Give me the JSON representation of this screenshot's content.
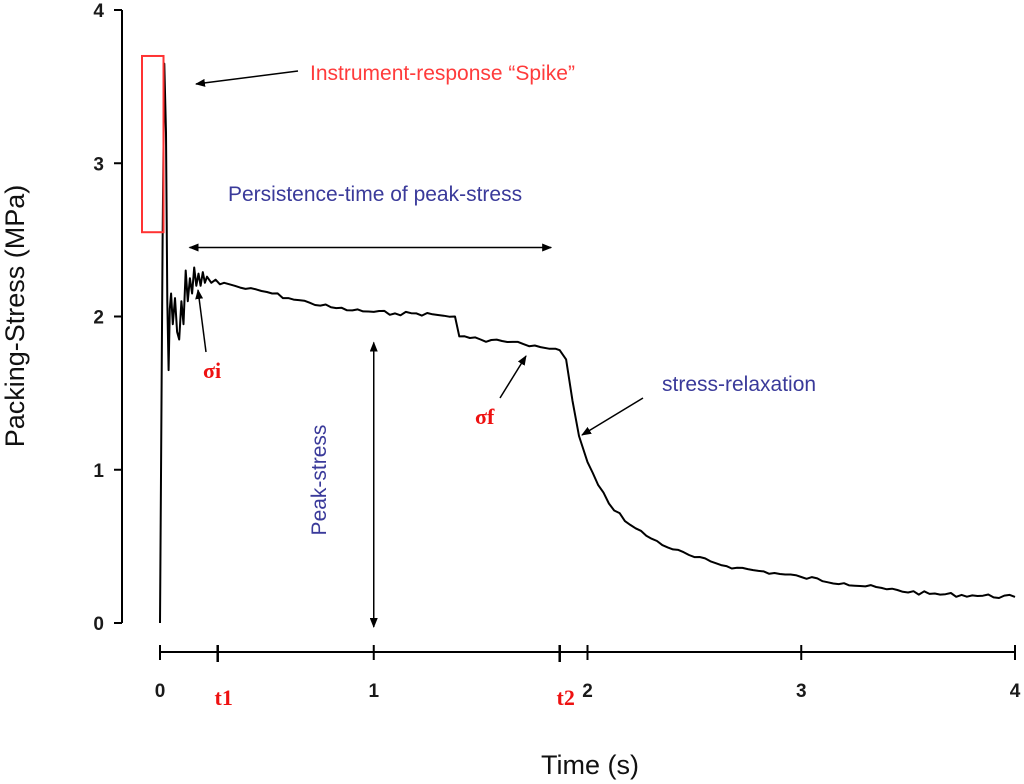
{
  "chart_data": {
    "type": "line",
    "title": "",
    "xlabel": "Time (s)",
    "ylabel": "Packing-Stress (MPa)",
    "xlim": [
      0,
      4
    ],
    "ylim": [
      0,
      4
    ],
    "x_ticks": [
      0,
      1,
      2,
      3,
      4
    ],
    "y_ticks": [
      0,
      1,
      2,
      3,
      4
    ],
    "grid": false,
    "series": [
      {
        "name": "Packing-stress",
        "x": [
          0.0,
          0.012,
          0.02,
          0.028,
          0.034,
          0.04,
          0.046,
          0.052,
          0.06,
          0.07,
          0.08,
          0.09,
          0.1,
          0.11,
          0.12,
          0.13,
          0.14,
          0.15,
          0.16,
          0.17,
          0.18,
          0.19,
          0.2,
          0.21,
          0.22,
          0.24,
          0.26,
          0.28,
          0.3,
          0.35,
          0.4,
          0.5,
          0.6,
          0.7,
          0.8,
          0.9,
          1.0,
          1.1,
          1.2,
          1.3,
          1.38,
          1.4,
          1.45,
          1.5,
          1.6,
          1.7,
          1.78,
          1.82,
          1.85,
          1.87,
          1.9,
          1.93,
          1.96,
          2.0,
          2.05,
          2.1,
          2.2,
          2.3,
          2.4,
          2.5,
          2.6,
          2.7,
          2.8,
          2.9,
          3.0,
          3.2,
          3.4,
          3.6,
          3.8,
          4.0
        ],
        "y": [
          0.0,
          2.5,
          3.65,
          3.2,
          2.1,
          1.65,
          2.05,
          2.15,
          1.95,
          2.12,
          1.9,
          1.85,
          2.1,
          1.95,
          2.3,
          2.1,
          2.25,
          2.15,
          2.32,
          2.2,
          2.28,
          2.2,
          2.29,
          2.22,
          2.26,
          2.22,
          2.24,
          2.21,
          2.22,
          2.2,
          2.18,
          2.16,
          2.12,
          2.09,
          2.06,
          2.04,
          2.03,
          2.02,
          2.02,
          2.01,
          2.0,
          1.87,
          1.86,
          1.85,
          1.84,
          1.82,
          1.8,
          1.79,
          1.79,
          1.78,
          1.72,
          1.45,
          1.22,
          1.05,
          0.9,
          0.78,
          0.64,
          0.55,
          0.48,
          0.43,
          0.39,
          0.36,
          0.34,
          0.32,
          0.3,
          0.26,
          0.22,
          0.19,
          0.18,
          0.17
        ]
      }
    ],
    "x_markers": [
      {
        "label": "t1",
        "x": 0.27
      },
      {
        "label": "t2",
        "x": 1.87
      }
    ],
    "annotations": {
      "spike": "Instrument-response “Spike”",
      "persistence": "Persistence-time of peak-stress",
      "peak_stress": "Peak-stress",
      "relaxation": "stress-relaxation",
      "sigma_i": "σi",
      "sigma_f": "σf"
    },
    "spike_box": {
      "x0": 0.0,
      "x1": 0.11,
      "y0": 2.55,
      "y1": 3.7
    },
    "peak_stress_arrow": {
      "x": 1.0,
      "y_from": 0.0,
      "y_to": 1.83
    },
    "persistence_arrow": {
      "x_from": 0.11,
      "x_to": 1.83,
      "y": 2.45
    },
    "colors": {
      "line": "#000000",
      "blue_text": "#3a3a9a",
      "red_text": "#ff3b3b",
      "red_marker": "#ee1111",
      "box": "#ff3333"
    }
  }
}
